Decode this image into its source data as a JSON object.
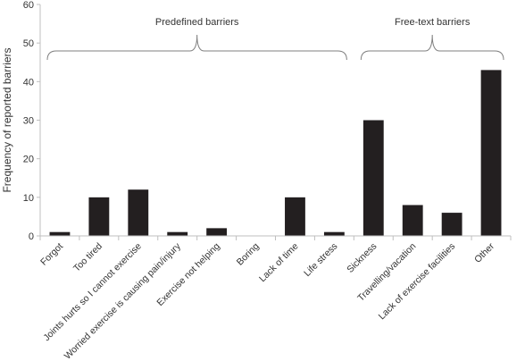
{
  "chart_data": {
    "type": "bar",
    "ylabel": "Frequency of reported barriers",
    "xlabel": "",
    "ylim": [
      0,
      60
    ],
    "yticks": [
      0,
      10,
      20,
      30,
      40,
      50,
      60
    ],
    "grid": false,
    "bar_color": "#231f20",
    "categories": [
      "Forgot",
      "Too tired",
      "Joints hurts so I cannot exercise",
      "Worried exercise is causing pain/injury",
      "Exercise not helping",
      "Boring",
      "Lack of time",
      "Life stress",
      "Sickness",
      "Travelling/vacation",
      "Lack of exercise facilities",
      "Other"
    ],
    "values": [
      1,
      10,
      12,
      1,
      2,
      0,
      10,
      1,
      30,
      8,
      6,
      43
    ],
    "groups": [
      {
        "label": "Predefined barriers",
        "start": 0,
        "end": 7
      },
      {
        "label": "Free-text barriers",
        "start": 8,
        "end": 11
      }
    ]
  }
}
